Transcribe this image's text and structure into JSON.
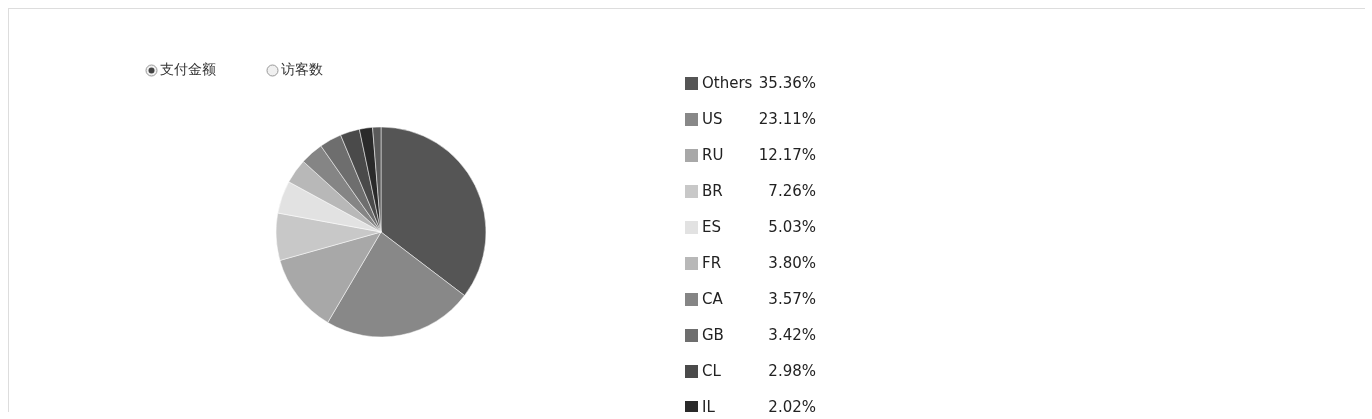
{
  "chart_data": {
    "type": "pie",
    "annotations": [
      "支付金额",
      "访客数"
    ],
    "categories": [
      "Others",
      "US",
      "RU",
      "BR",
      "ES",
      "FR",
      "CA",
      "GB",
      "CL",
      "IL",
      null
    ],
    "values": [
      35.36,
      23.11,
      12.17,
      7.26,
      5.03,
      3.8,
      3.57,
      3.42,
      2.98,
      2.02,
      1.28
    ],
    "value_labels": [
      "35.36%",
      "23.11%",
      "12.17%",
      "7.26%",
      "5.03%",
      "3.80%",
      "3.57%",
      "3.42%",
      "2.98%",
      "2.02%",
      null
    ],
    "colors": [
      "#555555",
      "#888888",
      "#a8a8a8",
      "#c8c8c8",
      "#e2e2e2",
      "#b8b8b8",
      "#858585",
      "#6e6e6e",
      "#4a4a4a",
      "#2a2a2a",
      "#5a5a5a"
    ],
    "legend": "right"
  }
}
